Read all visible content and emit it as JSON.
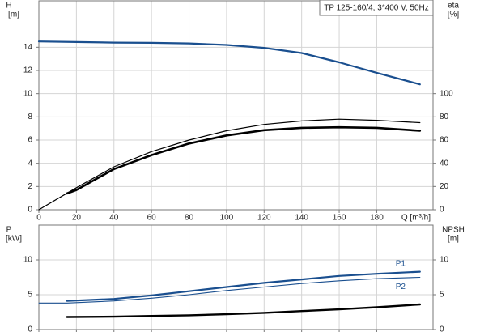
{
  "chart_data": [
    {
      "type": "line",
      "title": "TP 125-160/4, 3*400 V, 50Hz",
      "ylabel": "H",
      "ylabel_unit": "[m]",
      "y2label": "eta",
      "y2label_unit": "[%]",
      "xlabel": "Q [m³/h]",
      "xlim": [
        0,
        210
      ],
      "xticks": [
        0,
        20,
        40,
        60,
        80,
        100,
        120,
        140,
        160,
        180
      ],
      "ylim": [
        0,
        18
      ],
      "yticks": [
        0,
        2,
        4,
        6,
        8,
        10,
        12,
        14
      ],
      "y2lim": [
        0,
        180
      ],
      "y2ticks": [
        0,
        20,
        40,
        60,
        80,
        100
      ],
      "grid": true,
      "series": [
        {
          "color": "#1a4f8f",
          "width": 2.2,
          "x": [
            0,
            20,
            40,
            60,
            80,
            100,
            120,
            140,
            160,
            180,
            203
          ],
          "values": [
            14.5,
            14.45,
            14.4,
            14.38,
            14.33,
            14.2,
            13.95,
            13.5,
            12.7,
            11.8,
            10.8
          ]
        },
        {
          "color": "#000000",
          "width": 1.2,
          "axis": "y2",
          "x": [
            0,
            20,
            40,
            60,
            80,
            100,
            120,
            140,
            160,
            180,
            203
          ],
          "values": [
            0,
            19,
            37,
            50,
            60,
            68,
            73.5,
            76.5,
            78,
            77,
            75
          ]
        },
        {
          "color": "#000000",
          "width": 2.6,
          "axis": "y2",
          "x": [
            15,
            20,
            40,
            60,
            80,
            100,
            120,
            140,
            160,
            180,
            203
          ],
          "values": [
            14,
            17,
            35,
            47,
            57,
            64,
            68.5,
            70.5,
            71,
            70.5,
            68
          ]
        }
      ]
    },
    {
      "type": "line",
      "ylabel": "P",
      "ylabel_unit": "[kW]",
      "y2label": "NPSH",
      "y2label_unit": "[m]",
      "xlim": [
        0,
        210
      ],
      "xticks": [
        0,
        20,
        40,
        60,
        80,
        100,
        120,
        140,
        160,
        180
      ],
      "ylim": [
        0,
        15
      ],
      "yticks": [
        0,
        5,
        10
      ],
      "y2lim": [
        0,
        15
      ],
      "y2ticks": [
        0,
        5,
        10
      ],
      "grid": true,
      "series": [
        {
          "name": "P1",
          "color": "#1a4f8f",
          "width": 2.2,
          "x": [
            15,
            40,
            60,
            80,
            100,
            120,
            140,
            160,
            180,
            203
          ],
          "values": [
            4.1,
            4.4,
            4.9,
            5.5,
            6.1,
            6.7,
            7.2,
            7.7,
            8.0,
            8.3
          ]
        },
        {
          "name": "P2",
          "color": "#1a4f8f",
          "width": 1.1,
          "x": [
            0,
            15,
            40,
            60,
            80,
            100,
            120,
            140,
            160,
            180,
            203
          ],
          "values": [
            3.8,
            3.8,
            4.1,
            4.5,
            5.0,
            5.6,
            6.1,
            6.6,
            7.0,
            7.3,
            7.5
          ]
        },
        {
          "color": "#000000",
          "width": 2.4,
          "axis": "y2",
          "x": [
            15,
            40,
            60,
            80,
            100,
            120,
            140,
            160,
            180,
            203
          ],
          "values": [
            1.8,
            1.85,
            1.95,
            2.05,
            2.2,
            2.4,
            2.65,
            2.9,
            3.2,
            3.6
          ]
        }
      ]
    }
  ]
}
